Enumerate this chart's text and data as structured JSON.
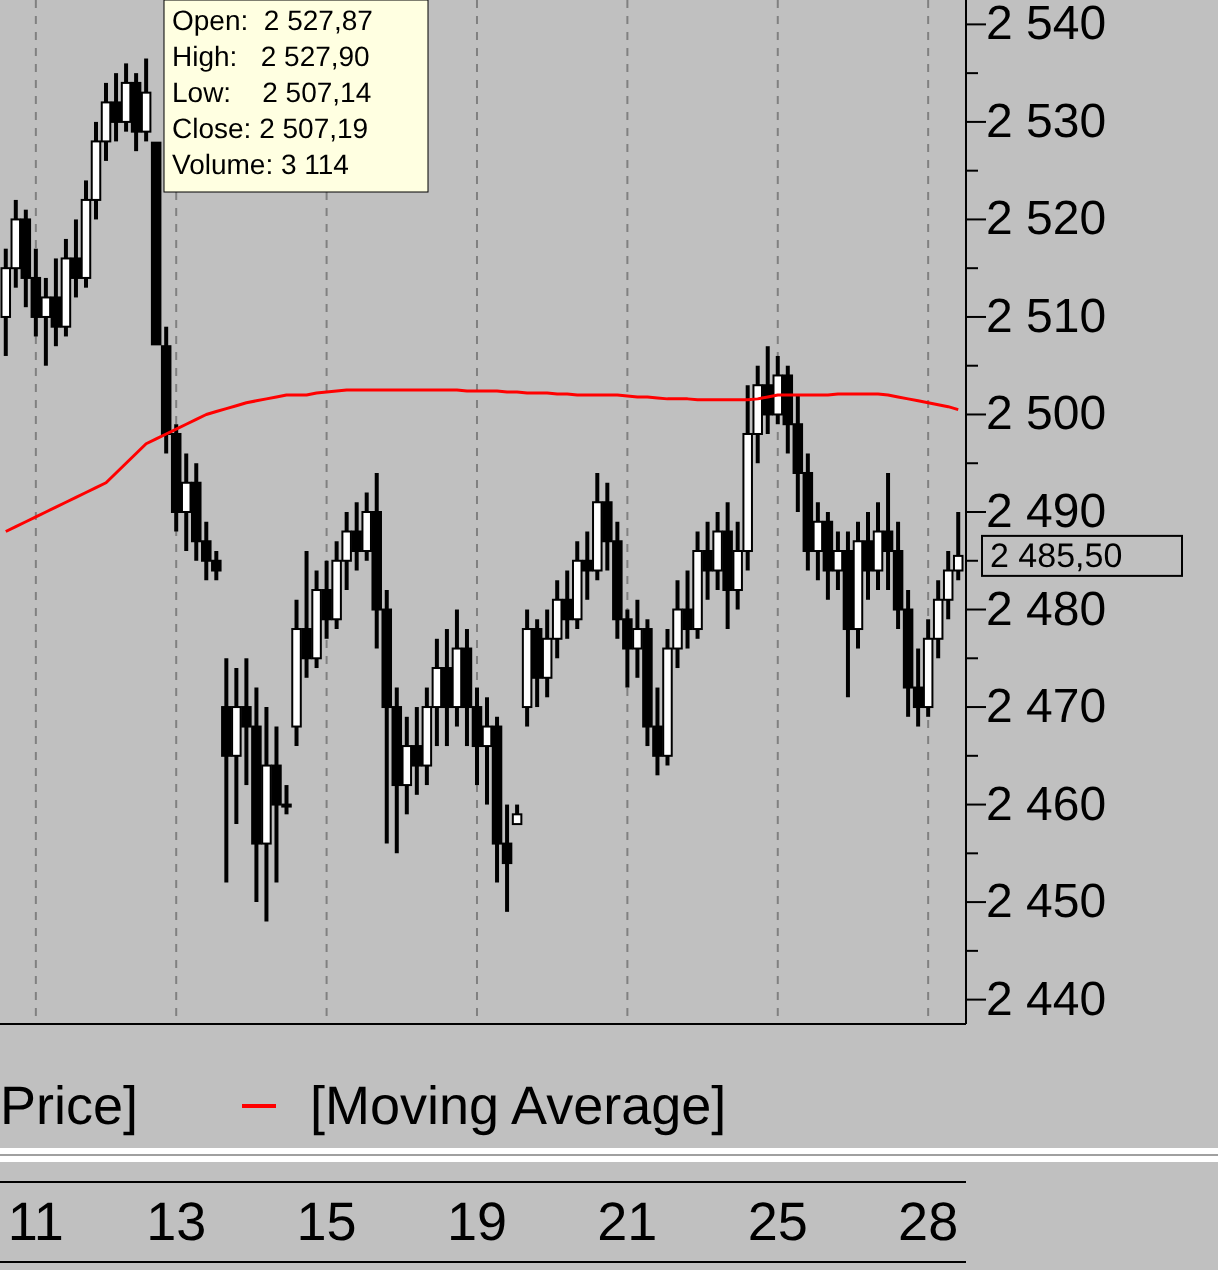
{
  "chart_data": {
    "type": "candlestick",
    "categories": [
      null,
      null,
      null,
      "11",
      null,
      null,
      null,
      null,
      null,
      null,
      null,
      null,
      null,
      null,
      null,
      null,
      null,
      "13",
      null,
      null,
      null,
      null,
      null,
      null,
      null,
      null,
      null,
      null,
      null,
      null,
      null,
      null,
      "15",
      null,
      null,
      null,
      null,
      null,
      null,
      null,
      null,
      null,
      null,
      null,
      null,
      null,
      null,
      "19",
      null,
      null,
      null,
      null,
      null,
      null,
      null,
      null,
      null,
      null,
      null,
      null,
      null,
      null,
      "21",
      null,
      null,
      null,
      null,
      null,
      null,
      null,
      null,
      null,
      null,
      null,
      null,
      null,
      null,
      "25",
      null,
      null,
      null,
      null,
      null,
      null,
      null,
      null,
      null,
      null,
      null,
      null,
      null,
      null,
      "28",
      null,
      null,
      null
    ],
    "series": [
      {
        "name": "Price]",
        "color": "#000000",
        "ohlc": [
          [
            2510,
            2517,
            2506,
            2515
          ],
          [
            2515,
            2522,
            2513,
            2520
          ],
          [
            2520,
            2521,
            2511,
            2514
          ],
          [
            2514,
            2517,
            2508,
            2510
          ],
          [
            2510,
            2514,
            2505,
            2512
          ],
          [
            2512,
            2516,
            2507,
            2509
          ],
          [
            2509,
            2518,
            2508,
            2516
          ],
          [
            2516,
            2520,
            2512,
            2514
          ],
          [
            2514,
            2524,
            2513,
            2522
          ],
          [
            2522,
            2530,
            2520,
            2528
          ],
          [
            2528,
            2534,
            2526,
            2532
          ],
          [
            2532,
            2535,
            2528,
            2530
          ],
          [
            2530,
            2536,
            2529,
            2534
          ],
          [
            2534,
            2535,
            2527,
            2529
          ],
          [
            2529,
            2536.5,
            2528,
            2533
          ],
          [
            2527.87,
            2527.9,
            2507.14,
            2507.19
          ],
          [
            2507,
            2509,
            2496,
            2498
          ],
          [
            2498,
            2499,
            2488,
            2490
          ],
          [
            2490,
            2496,
            2486,
            2493
          ],
          [
            2493,
            2495,
            2485,
            2487
          ],
          [
            2487,
            2489,
            2483,
            2485
          ],
          [
            2485,
            2486,
            2483,
            2484
          ],
          [
            2470,
            2475,
            2452,
            2465
          ],
          [
            2465,
            2474,
            2458,
            2470
          ],
          [
            2470,
            2475,
            2462,
            2468
          ],
          [
            2468,
            2472,
            2450,
            2456
          ],
          [
            2456,
            2470,
            2448,
            2464
          ],
          [
            2464,
            2468,
            2452,
            2460
          ],
          [
            2460,
            2462,
            2459,
            2460
          ],
          [
            2468,
            2481,
            2466,
            2478
          ],
          [
            2478,
            2486,
            2473,
            2475
          ],
          [
            2475,
            2484,
            2474,
            2482
          ],
          [
            2482,
            2485,
            2477,
            2479
          ],
          [
            2479,
            2487,
            2478,
            2485
          ],
          [
            2485,
            2490,
            2482,
            2488
          ],
          [
            2488,
            2491,
            2484,
            2486
          ],
          [
            2486,
            2492,
            2485,
            2490
          ],
          [
            2490,
            2494,
            2476,
            2480
          ],
          [
            2480,
            2482,
            2456,
            2470
          ],
          [
            2470,
            2472,
            2455,
            2462
          ],
          [
            2462,
            2469,
            2459,
            2466
          ],
          [
            2466,
            2470,
            2461,
            2464
          ],
          [
            2464,
            2472,
            2462,
            2470
          ],
          [
            2470,
            2477,
            2466,
            2474
          ],
          [
            2474,
            2478,
            2466,
            2470
          ],
          [
            2470,
            2480,
            2468,
            2476
          ],
          [
            2476,
            2478,
            2466,
            2470
          ],
          [
            2470,
            2472,
            2462,
            2466
          ],
          [
            2466,
            2471,
            2460,
            2468
          ],
          [
            2468,
            2469,
            2452,
            2456
          ],
          [
            2456,
            2460,
            2449,
            2454
          ],
          [
            2458,
            2460,
            2458,
            2459
          ],
          [
            2470,
            2480,
            2468,
            2478
          ],
          [
            2478,
            2479,
            2470,
            2473
          ],
          [
            2473,
            2480,
            2471,
            2477
          ],
          [
            2477,
            2483,
            2475,
            2481
          ],
          [
            2481,
            2484,
            2477,
            2479
          ],
          [
            2479,
            2487,
            2478,
            2485
          ],
          [
            2485,
            2488,
            2481,
            2484
          ],
          [
            2484,
            2494,
            2483,
            2491
          ],
          [
            2491,
            2493,
            2484,
            2487
          ],
          [
            2487,
            2489,
            2477,
            2479
          ],
          [
            2479,
            2480,
            2472,
            2476
          ],
          [
            2476,
            2481,
            2473,
            2478
          ],
          [
            2478,
            2479,
            2466,
            2468
          ],
          [
            2468,
            2472,
            2463,
            2465
          ],
          [
            2465,
            2478,
            2464,
            2476
          ],
          [
            2476,
            2483,
            2474,
            2480
          ],
          [
            2480,
            2484,
            2476,
            2478
          ],
          [
            2478,
            2488,
            2477,
            2486
          ],
          [
            2486,
            2489,
            2481,
            2484
          ],
          [
            2484,
            2490,
            2482,
            2488
          ],
          [
            2488,
            2491,
            2478,
            2482
          ],
          [
            2482,
            2489,
            2480,
            2486
          ],
          [
            2486,
            2503,
            2484,
            2498
          ],
          [
            2498,
            2505,
            2495,
            2503
          ],
          [
            2503,
            2507,
            2498,
            2500
          ],
          [
            2500,
            2506,
            2499,
            2504
          ],
          [
            2504,
            2505,
            2496,
            2499
          ],
          [
            2499,
            2502,
            2490,
            2494
          ],
          [
            2494,
            2496,
            2484,
            2486
          ],
          [
            2486,
            2491,
            2483,
            2489
          ],
          [
            2489,
            2490,
            2481,
            2484
          ],
          [
            2484,
            2488,
            2482,
            2486
          ],
          [
            2486,
            2488,
            2471,
            2478
          ],
          [
            2478,
            2489,
            2476,
            2487
          ],
          [
            2487,
            2490,
            2481,
            2484
          ],
          [
            2484,
            2491,
            2482,
            2488
          ],
          [
            2488,
            2494,
            2482,
            2486
          ],
          [
            2486,
            2489,
            2478,
            2480
          ],
          [
            2480,
            2482,
            2469,
            2472
          ],
          [
            2472,
            2476,
            2468,
            2470
          ],
          [
            2470,
            2479,
            2469,
            2477
          ],
          [
            2477,
            2483,
            2475,
            2481
          ],
          [
            2481,
            2486,
            2479,
            2484
          ],
          [
            2484,
            2490,
            2483,
            2485.5
          ]
        ]
      },
      {
        "name": "[Moving Average]",
        "type": "line",
        "color": "#ff0000",
        "values": [
          2488,
          2488.5,
          2489,
          2489.5,
          2490,
          2490.5,
          2491,
          2491.5,
          2492,
          2492.5,
          2493,
          2494,
          2495,
          2496,
          2497,
          2497.5,
          2498,
          2498.5,
          2499,
          2499.5,
          2500,
          2500.3,
          2500.6,
          2500.9,
          2501.2,
          2501.4,
          2501.6,
          2501.8,
          2502,
          2502,
          2502,
          2502.2,
          2502.3,
          2502.4,
          2502.5,
          2502.5,
          2502.5,
          2502.5,
          2502.5,
          2502.5,
          2502.5,
          2502.5,
          2502.5,
          2502.5,
          2502.5,
          2502.5,
          2502.4,
          2502.4,
          2502.4,
          2502.4,
          2502.3,
          2502.3,
          2502.2,
          2502.2,
          2502.2,
          2502.1,
          2502.1,
          2502,
          2502,
          2502,
          2502,
          2502,
          2501.9,
          2501.8,
          2501.8,
          2501.7,
          2501.6,
          2501.6,
          2501.6,
          2501.5,
          2501.5,
          2501.5,
          2501.5,
          2501.5,
          2501.5,
          2501.6,
          2501.8,
          2502,
          2502,
          2502,
          2502,
          2502,
          2502,
          2502.1,
          2502.1,
          2502.1,
          2502.1,
          2502.1,
          2502,
          2501.8,
          2501.6,
          2501.4,
          2501.2,
          2501,
          2500.8,
          2500.5
        ]
      }
    ],
    "ylim": [
      2437.5,
      2542.5
    ],
    "yticks": [
      {
        "value": 2440,
        "label": "2 440"
      },
      {
        "value": 2445,
        "label": null
      },
      {
        "value": 2450,
        "label": "2 450"
      },
      {
        "value": 2455,
        "label": null
      },
      {
        "value": 2460,
        "label": "2 460"
      },
      {
        "value": 2465,
        "label": null
      },
      {
        "value": 2470,
        "label": "2 470"
      },
      {
        "value": 2475,
        "label": null
      },
      {
        "value": 2480,
        "label": "2 480"
      },
      {
        "value": 2485,
        "label": null
      },
      {
        "value": 2490,
        "label": "2 490"
      },
      {
        "value": 2495,
        "label": null
      },
      {
        "value": 2500,
        "label": "2 500"
      },
      {
        "value": 2505,
        "label": null
      },
      {
        "value": 2510,
        "label": "2 510"
      },
      {
        "value": 2515,
        "label": null
      },
      {
        "value": 2520,
        "label": "2 520"
      },
      {
        "value": 2525,
        "label": null
      },
      {
        "value": 2530,
        "label": "2 530"
      },
      {
        "value": 2535,
        "label": null
      },
      {
        "value": 2540,
        "label": "2 540"
      }
    ],
    "grid": "x",
    "legend": "bottom",
    "annotations": [
      "Open:  2 527,87\nHigh:   2 527,90\nLow:    2 507,14\nClose: 2 507,19\nVolume: 3 114",
      "2 485,50"
    ]
  }
}
